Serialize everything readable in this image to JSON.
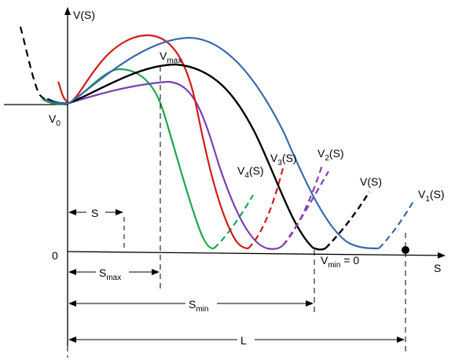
{
  "axes": {
    "y_label": "V(S)",
    "x_label": "S",
    "origin_label": "0"
  },
  "labels": {
    "v0": {
      "main": "V",
      "sub": "0"
    },
    "vmax": {
      "main": "V",
      "sub": "max"
    },
    "vmin": {
      "main": "V",
      "sub": "min",
      "suffix": " = 0"
    }
  },
  "curves": [
    {
      "name": "V(S)",
      "color": "#000000"
    },
    {
      "name": "V1(S)",
      "main": "V",
      "sub": "1",
      "suffix": "(S)",
      "color": "#3a6aad"
    },
    {
      "name": "V2(S)",
      "main": "V",
      "sub": "2",
      "suffix": "(S)",
      "color": "#8a3fb3"
    },
    {
      "name": "V3(S)",
      "main": "V",
      "sub": "3",
      "suffix": "(S)",
      "color": "#d11a1a"
    },
    {
      "name": "V4(S)",
      "main": "V",
      "sub": "4",
      "suffix": "(S)",
      "color": "#7a3fb3"
    },
    {
      "name": "green",
      "color": "#1aa64a"
    }
  ],
  "dimensions": {
    "s": {
      "main": "S",
      "sub": ""
    },
    "s_max": {
      "main": "S",
      "sub": "max"
    },
    "s_min": {
      "main": "S",
      "sub": "min"
    },
    "l": {
      "main": "L",
      "sub": ""
    }
  }
}
